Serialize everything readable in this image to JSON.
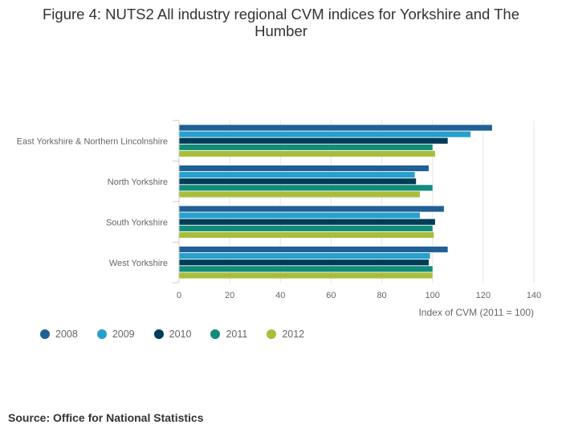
{
  "title": "Figure 4: NUTS2 All industry regional CVM indices for Yorkshire and The Humber",
  "source": "Source: Office for National Statistics",
  "chart_data": {
    "type": "bar",
    "orientation": "horizontal",
    "categories": [
      "East Yorkshire & Northern Lincolnshire",
      "North Yorkshire",
      "South Yorkshire",
      "West Yorkshire"
    ],
    "series": [
      {
        "name": "2008",
        "color": "#206095",
        "values": [
          123.5,
          98.5,
          104.5,
          106
        ]
      },
      {
        "name": "2009",
        "color": "#27a0cc",
        "values": [
          115,
          93,
          95,
          99
        ]
      },
      {
        "name": "2010",
        "color": "#003c57",
        "values": [
          106,
          93.5,
          101,
          98.5
        ]
      },
      {
        "name": "2011",
        "color": "#118c7b",
        "values": [
          100,
          100,
          100,
          100
        ]
      },
      {
        "name": "2012",
        "color": "#a8bd3a",
        "values": [
          101,
          95,
          100.5,
          100
        ]
      }
    ],
    "xlabel": "Index of CVM (2011 = 100)",
    "ylabel": "",
    "xlim": [
      0,
      140
    ],
    "xticks": [
      0,
      20,
      40,
      60,
      80,
      100,
      120,
      140
    ],
    "grid": true,
    "legend_position": "bottom-left"
  }
}
